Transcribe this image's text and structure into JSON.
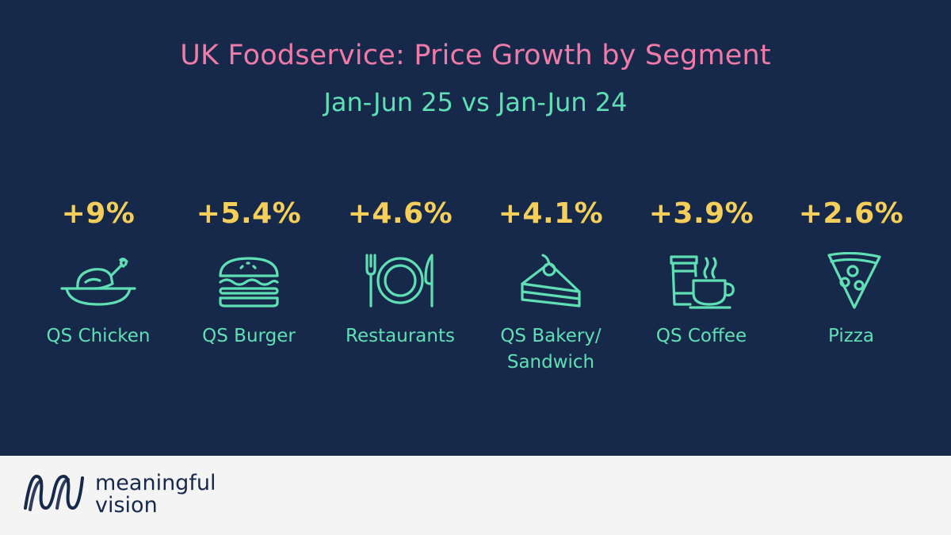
{
  "colors": {
    "background": "#17294a",
    "title": "#f07aa8",
    "subtitle": "#5fe0b4",
    "value": "#f5cf5a",
    "icon": "#5fe0b4",
    "label": "#5fe0b4",
    "footer": "#f4f4f4",
    "brand": "#17294a"
  },
  "brand": {
    "line1": "meaningful",
    "line2": "vision"
  },
  "chart_data": {
    "type": "table",
    "title": "UK Foodservice: Price Growth by Segment",
    "subtitle": "Jan-Jun 25 vs Jan-Jun 24",
    "unit": "%",
    "categories": [
      "QS Chicken",
      "QS Burger",
      "Restaurants",
      "QS Bakery/ Sandwich",
      "QS Coffee",
      "Pizza"
    ],
    "values": [
      9,
      5.4,
      4.6,
      4.1,
      3.9,
      2.6
    ],
    "value_labels": [
      "+9%",
      "+5.4%",
      "+4.6%",
      "+4.1%",
      "+3.9%",
      "+2.6%"
    ],
    "items": [
      {
        "value_label": "+9%",
        "label_lines": [
          "QS Chicken"
        ],
        "icon": "chicken-icon"
      },
      {
        "value_label": "+5.4%",
        "label_lines": [
          "QS Burger"
        ],
        "icon": "burger-icon"
      },
      {
        "value_label": "+4.6%",
        "label_lines": [
          "Restaurants"
        ],
        "icon": "plate-cutlery-icon"
      },
      {
        "value_label": "+4.1%",
        "label_lines": [
          "QS Bakery/",
          "Sandwich"
        ],
        "icon": "cake-slice-icon"
      },
      {
        "value_label": "+3.9%",
        "label_lines": [
          "QS Coffee"
        ],
        "icon": "coffee-icon"
      },
      {
        "value_label": "+2.6%",
        "label_lines": [
          "Pizza"
        ],
        "icon": "pizza-icon"
      }
    ]
  }
}
